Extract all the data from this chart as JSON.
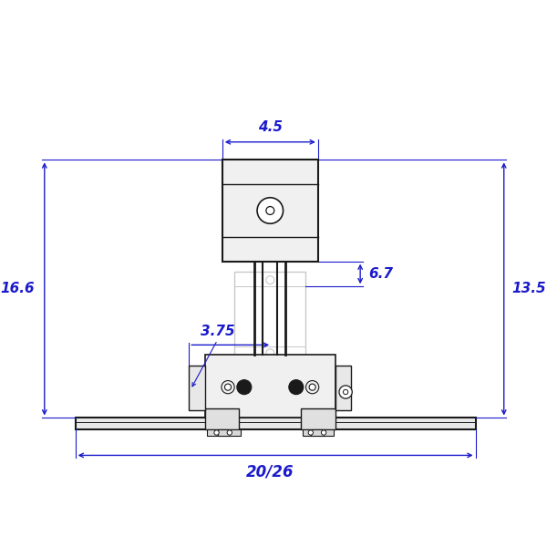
{
  "bg_color": "#ffffff",
  "line_color": "#1a1a1a",
  "dim_color": "#1a1acc",
  "light_gray": "#c8c8c8",
  "med_gray": "#999999",
  "dark_gray": "#444444",
  "fill_light": "#f2f2f2",
  "fill_white": "#ffffff",
  "fig_size": [
    6.0,
    6.0
  ],
  "dpi": 100,
  "dim_45": "4.5",
  "dim_67": "6.7",
  "dim_166": "16.6",
  "dim_135": "13.5",
  "dim_375": "3.75",
  "dim_2026": "20/26"
}
